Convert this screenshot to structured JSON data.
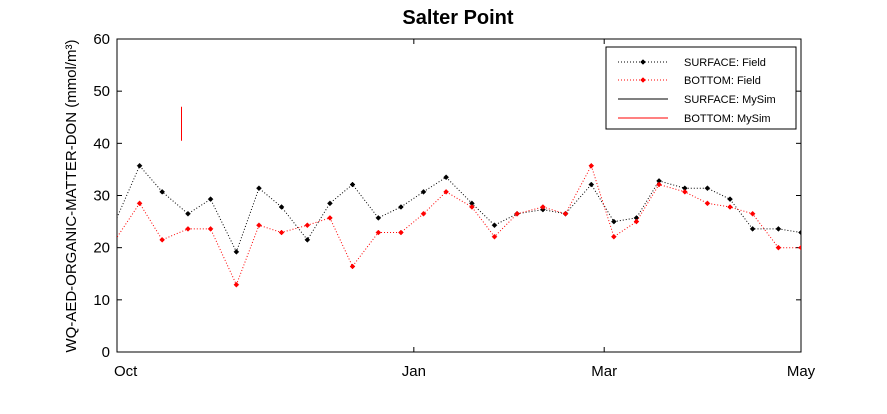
{
  "chart_data": {
    "type": "line",
    "title": "Salter Point",
    "xlabel": "",
    "ylabel": "WQ-AED-ORGANIC-MATTER-DON (mmol/m³)",
    "ylim": [
      0,
      60
    ],
    "yticks": [
      "0",
      "10",
      "20",
      "30",
      "40",
      "50",
      "60"
    ],
    "xticks": [
      {
        "label": "Oct",
        "day": 0
      },
      {
        "label": "Jan",
        "day": 92
      },
      {
        "label": "Mar",
        "day": 151
      },
      {
        "label": "May",
        "day": 212
      }
    ],
    "xlim_days": [
      0,
      212
    ],
    "grid": false,
    "legend_position": "top-right",
    "series": [
      {
        "name": "SURFACE: Field",
        "color": "#000000",
        "style": "dotted",
        "marker": "diamond",
        "x": [
          -3,
          7,
          14,
          22,
          29,
          37,
          44,
          51,
          59,
          66,
          73,
          81,
          88,
          95,
          102,
          110,
          117,
          124,
          132,
          139,
          147,
          154,
          161,
          168,
          176,
          183,
          190,
          197,
          205,
          212
        ],
        "y": [
          21.5,
          35.7,
          30.7,
          26.5,
          29.3,
          19.2,
          31.4,
          27.8,
          21.5,
          28.5,
          32.1,
          25.7,
          27.8,
          30.7,
          33.5,
          28.5,
          24.3,
          26.5,
          27.3,
          26.5,
          32.1,
          25.0,
          25.7,
          32.8,
          31.4,
          31.4,
          29.3,
          23.6,
          23.6,
          22.9
        ]
      },
      {
        "name": "BOTTOM: Field",
        "color": "#ff0000",
        "style": "dotted",
        "marker": "diamond",
        "x": [
          -3,
          7,
          14,
          22,
          29,
          37,
          44,
          51,
          59,
          66,
          73,
          81,
          88,
          95,
          102,
          110,
          117,
          124,
          132,
          139,
          147,
          154,
          161,
          168,
          176,
          183,
          190,
          197,
          205,
          212
        ],
        "y": [
          19.2,
          28.5,
          21.5,
          23.6,
          23.6,
          12.9,
          24.3,
          22.9,
          24.3,
          25.7,
          16.4,
          22.9,
          22.9,
          26.5,
          30.7,
          27.8,
          22.1,
          26.5,
          27.8,
          26.5,
          35.7,
          22.1,
          25.0,
          32.1,
          30.7,
          28.5,
          27.8,
          26.5,
          20.0,
          20.0
        ]
      },
      {
        "name": "SURFACE: MySim",
        "color": "#000000",
        "style": "solid",
        "x": [],
        "y": []
      },
      {
        "name": "BOTTOM: MySim",
        "color": "#ff0000",
        "style": "solid",
        "x": [
          20,
          20
        ],
        "y": [
          40.5,
          47.0
        ]
      }
    ]
  }
}
